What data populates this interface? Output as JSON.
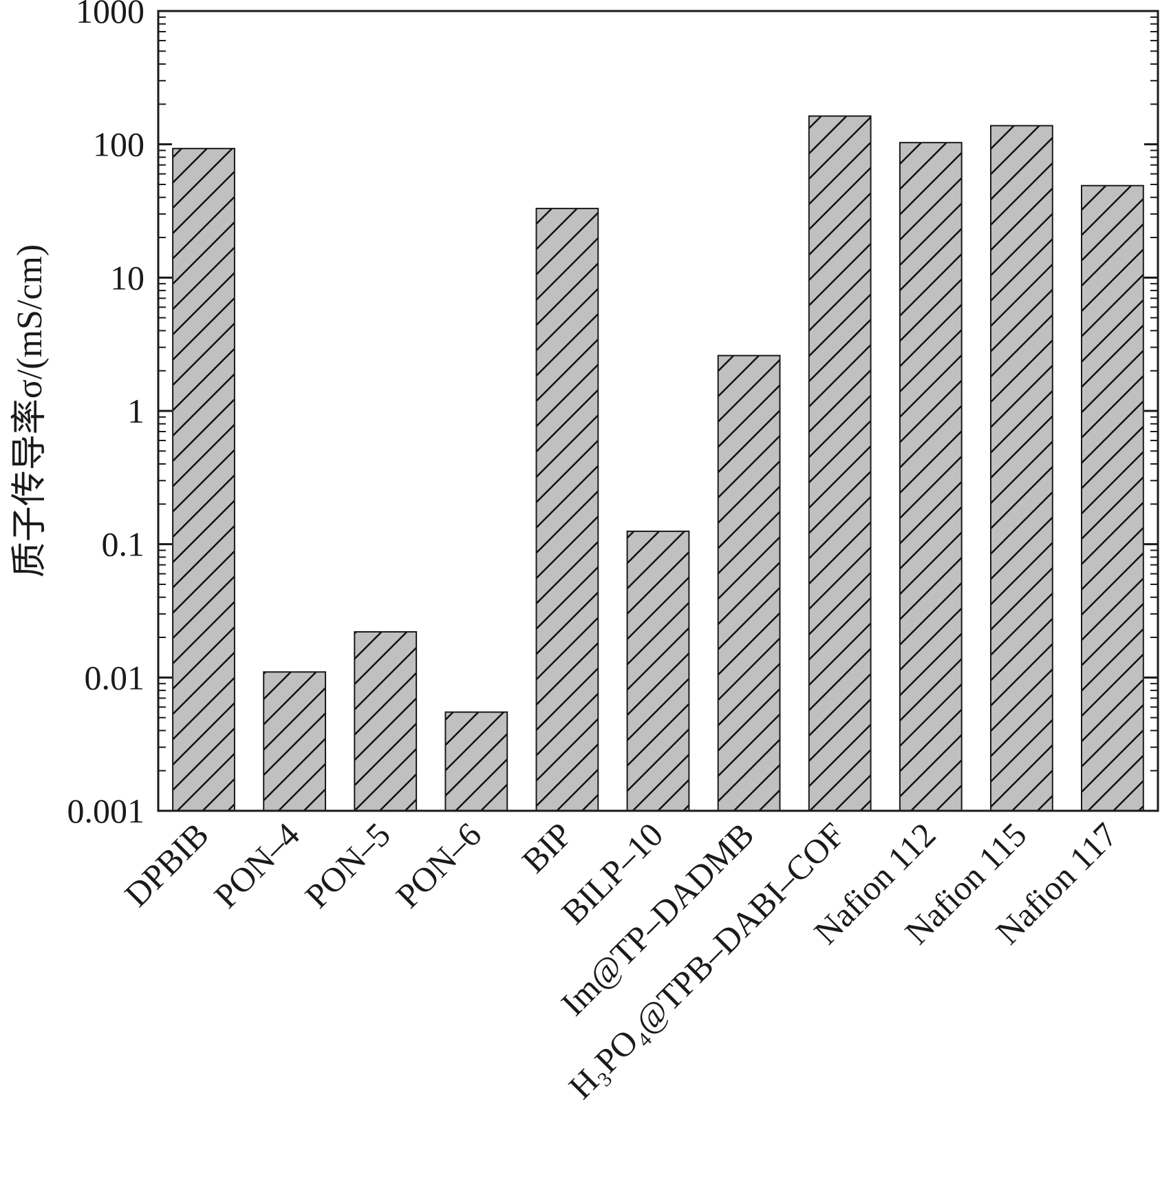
{
  "chart_data": {
    "type": "bar",
    "title": "",
    "xlabel": "",
    "ylabel": "质子传导率σ/(mS/cm)",
    "yscale": "log",
    "ylim": [
      0.001,
      1000
    ],
    "yticks": [
      "0.001",
      "0.01",
      "0.1",
      "1",
      "10",
      "100",
      "1000"
    ],
    "grid": false,
    "legend": "none",
    "categories": [
      "DPBIB",
      "PON–4",
      "PON–5",
      "PON–6",
      "BIP",
      "BILP–10",
      "Im@TP–DADMB",
      "H₃PO₄@TPB–DABI–COF",
      "Nafion 112",
      "Nafion 115",
      "Nafion 117"
    ],
    "values": [
      93,
      0.011,
      0.022,
      0.0055,
      33,
      0.125,
      2.6,
      163,
      103,
      138,
      49
    ],
    "bar_fill": "#c0c0c0",
    "bar_hatch": "diagonal",
    "bar_stroke": "#1a1a1a"
  }
}
